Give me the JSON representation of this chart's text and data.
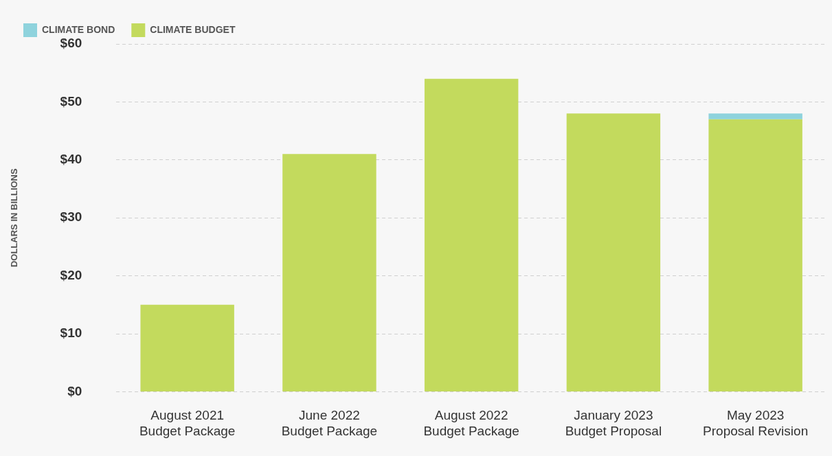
{
  "chart_data": {
    "type": "bar",
    "ylabel": "DOLLARS IN BILLIONS",
    "categories": [
      "August 2021\nBudget Package",
      "June 2022\nBudget Package",
      "August 2022\nBudget Package",
      "January 2023\nBudget Proposal",
      "May 2023\nProposal Revision"
    ],
    "series": [
      {
        "name": "CLIMATE BUDGET",
        "color": "#c3da5d",
        "values": [
          15,
          41,
          54,
          48,
          47
        ]
      },
      {
        "name": "CLIMATE BOND",
        "color": "#8fd3dd",
        "values": [
          null,
          null,
          null,
          null,
          1
        ]
      }
    ],
    "stacked": true,
    "ylim": [
      0,
      60
    ],
    "yticks": [
      {
        "value": 0,
        "label": "$0"
      },
      {
        "value": 10,
        "label": "$10"
      },
      {
        "value": 20,
        "label": "$20"
      },
      {
        "value": 30,
        "label": "$30"
      },
      {
        "value": 40,
        "label": "$40"
      },
      {
        "value": 50,
        "label": "$50"
      },
      {
        "value": 60,
        "label": "$60"
      }
    ],
    "grid": "y",
    "legend": "top left"
  }
}
